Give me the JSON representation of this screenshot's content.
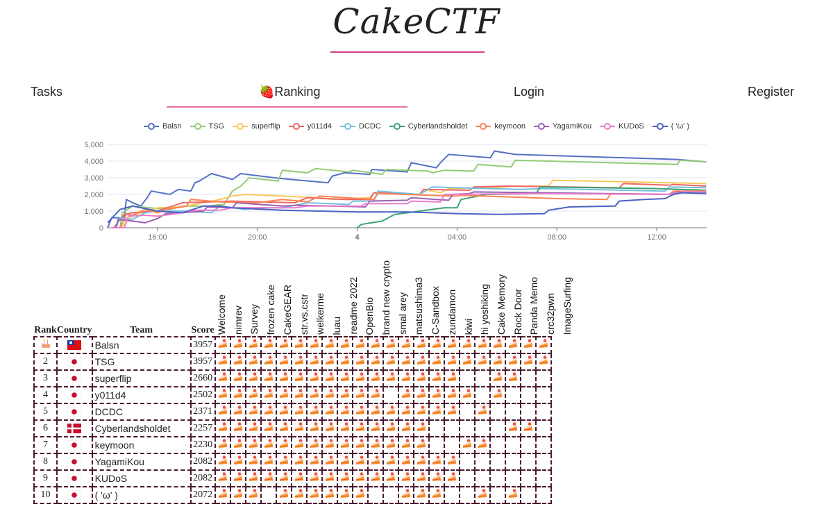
{
  "header": {
    "logo": "CakeCTF"
  },
  "nav": {
    "items": [
      {
        "label": "Tasks",
        "active": false
      },
      {
        "label": "🍓Ranking",
        "active": true
      },
      {
        "label": "Login",
        "active": false
      },
      {
        "label": "Register",
        "active": false
      }
    ],
    "accent": "#e66fa5"
  },
  "chart_data": {
    "type": "line",
    "xlabel": "",
    "ylabel": "",
    "x_tick_labels": [
      "16:00",
      "20:00",
      "4",
      "04:00",
      "08:00",
      "12:00"
    ],
    "x_range": [
      "3 14:00",
      "4 14:00"
    ],
    "y_ticks": [
      "0",
      "1,000",
      "2,000",
      "3,000",
      "4,000",
      "5,000"
    ],
    "ylim": [
      0,
      5000
    ],
    "grid": true,
    "legend": "top",
    "series": [
      {
        "name": "Balsn",
        "color": "#5470c6",
        "points": [
          [
            "14:00",
            0
          ],
          [
            "14:10",
            600
          ],
          [
            "14:40",
            600
          ],
          [
            "14:45",
            1700
          ],
          [
            "15:00",
            1500
          ],
          [
            "15:20",
            1300
          ],
          [
            "15:35",
            1800
          ],
          [
            "15:45",
            2200
          ],
          [
            "16:30",
            2000
          ],
          [
            "16:50",
            2300
          ],
          [
            "17:20",
            2200
          ],
          [
            "17:30",
            2700
          ],
          [
            "17:40",
            2800
          ],
          [
            "18:10",
            3250
          ],
          [
            "19:00",
            2900
          ],
          [
            "19:20",
            3250
          ],
          [
            "20:40",
            3000
          ],
          [
            "21:00",
            2950
          ],
          [
            "22:50",
            2700
          ],
          [
            "23:00",
            3100
          ],
          [
            "23:30",
            3300
          ],
          [
            "00:30",
            3200
          ],
          [
            "00:35",
            3500
          ],
          [
            "02:00",
            3350
          ],
          [
            "02:10",
            3900
          ],
          [
            "03:10",
            3600
          ],
          [
            "03:20",
            3900
          ],
          [
            "03:40",
            4400
          ],
          [
            "05:20",
            4200
          ],
          [
            "05:30",
            4600
          ],
          [
            "06:20",
            4400
          ],
          [
            "12:50",
            4100
          ],
          [
            "13:59",
            3950
          ]
        ]
      },
      {
        "name": "TSG",
        "color": "#91cc75",
        "points": [
          [
            "14:30",
            0
          ],
          [
            "14:35",
            900
          ],
          [
            "15:00",
            1300
          ],
          [
            "16:00",
            1150
          ],
          [
            "16:30",
            1100
          ],
          [
            "17:00",
            1300
          ],
          [
            "18:00",
            1300
          ],
          [
            "18:40",
            1400
          ],
          [
            "19:00",
            2200
          ],
          [
            "19:20",
            2500
          ],
          [
            "19:40",
            3000
          ],
          [
            "20:50",
            2800
          ],
          [
            "21:00",
            3450
          ],
          [
            "22:00",
            3300
          ],
          [
            "22:20",
            3550
          ],
          [
            "23:40",
            3350
          ],
          [
            "23:50",
            3450
          ],
          [
            "01:00",
            3200
          ],
          [
            "01:10",
            3500
          ],
          [
            "02:50",
            3400
          ],
          [
            "03:00",
            3300
          ],
          [
            "03:30",
            3450
          ],
          [
            "04:40",
            3400
          ],
          [
            "04:50",
            3800
          ],
          [
            "06:10",
            3650
          ],
          [
            "06:20",
            4050
          ],
          [
            "12:50",
            3800
          ],
          [
            "12:55",
            4050
          ],
          [
            "13:59",
            3950
          ]
        ]
      },
      {
        "name": "superflip",
        "color": "#fac858",
        "points": [
          [
            "14:30",
            0
          ],
          [
            "15:00",
            700
          ],
          [
            "15:20",
            900
          ],
          [
            "16:00",
            1200
          ],
          [
            "17:00",
            1250
          ],
          [
            "18:30",
            1700
          ],
          [
            "19:00",
            1900
          ],
          [
            "19:30",
            2000
          ],
          [
            "22:30",
            1800
          ],
          [
            "23:00",
            1700
          ],
          [
            "00:30",
            1800
          ],
          [
            "00:40",
            2100
          ],
          [
            "02:30",
            2000
          ],
          [
            "02:40",
            2300
          ],
          [
            "03:20",
            2100
          ],
          [
            "03:40",
            2350
          ],
          [
            "05:30",
            2400
          ],
          [
            "06:20",
            2500
          ],
          [
            "07:40",
            2500
          ],
          [
            "07:50",
            2850
          ],
          [
            "13:59",
            2650
          ]
        ]
      },
      {
        "name": "y011d4",
        "color": "#ee6666",
        "points": [
          [
            "14:15",
            0
          ],
          [
            "14:40",
            800
          ],
          [
            "15:00",
            900
          ],
          [
            "16:00",
            1000
          ],
          [
            "17:00",
            1500
          ],
          [
            "19:00",
            1600
          ],
          [
            "21:30",
            1500
          ],
          [
            "22:00",
            1800
          ],
          [
            "23:30",
            1700
          ],
          [
            "00:30",
            1700
          ],
          [
            "00:40",
            2100
          ],
          [
            "02:30",
            2000
          ],
          [
            "02:40",
            2300
          ],
          [
            "04:30",
            2250
          ],
          [
            "04:40",
            2450
          ],
          [
            "06:00",
            2500
          ],
          [
            "10:30",
            2400
          ],
          [
            "10:40",
            2650
          ],
          [
            "12:30",
            2550
          ],
          [
            "12:40",
            2600
          ],
          [
            "13:59",
            2500
          ]
        ]
      },
      {
        "name": "DCDC",
        "color": "#73c0de",
        "points": [
          [
            "14:20",
            0
          ],
          [
            "14:30",
            600
          ],
          [
            "15:00",
            500
          ],
          [
            "15:30",
            900
          ],
          [
            "16:00",
            1000
          ],
          [
            "17:00",
            1000
          ],
          [
            "18:10",
            900
          ],
          [
            "18:30",
            1300
          ],
          [
            "19:00",
            1200
          ],
          [
            "19:30",
            1100
          ],
          [
            "20:00",
            1200
          ],
          [
            "21:00",
            1200
          ],
          [
            "22:00",
            1500
          ],
          [
            "23:40",
            1400
          ],
          [
            "23:50",
            1600
          ],
          [
            "00:40",
            1600
          ],
          [
            "00:50",
            2200
          ],
          [
            "02:30",
            2000
          ],
          [
            "03:00",
            2450
          ],
          [
            "04:00",
            2400
          ],
          [
            "06:30",
            2300
          ],
          [
            "07:30",
            2350
          ],
          [
            "12:20",
            2200
          ],
          [
            "12:30",
            2450
          ],
          [
            "13:59",
            2400
          ]
        ]
      },
      {
        "name": "Cyberlandsholdet",
        "color": "#3ba272",
        "points": [
          [
            "00:00",
            0
          ],
          [
            "00:10",
            200
          ],
          [
            "01:00",
            400
          ],
          [
            "01:30",
            800
          ],
          [
            "02:30",
            1000
          ],
          [
            "03:30",
            1200
          ],
          [
            "04:00",
            1200
          ],
          [
            "04:10",
            1700
          ],
          [
            "04:30",
            1800
          ],
          [
            "05:10",
            2000
          ],
          [
            "07:10",
            2050
          ],
          [
            "07:20",
            2450
          ],
          [
            "12:00",
            2350
          ],
          [
            "13:59",
            2250
          ]
        ]
      },
      {
        "name": "keymoon",
        "color": "#fc8452",
        "points": [
          [
            "14:30",
            0
          ],
          [
            "14:45",
            800
          ],
          [
            "15:00",
            750
          ],
          [
            "15:30",
            1100
          ],
          [
            "16:00",
            900
          ],
          [
            "16:20",
            1100
          ],
          [
            "17:10",
            1300
          ],
          [
            "17:20",
            1700
          ],
          [
            "18:30",
            1550
          ],
          [
            "20:00",
            1500
          ],
          [
            "21:00",
            1700
          ],
          [
            "22:00",
            1550
          ],
          [
            "22:30",
            1900
          ],
          [
            "00:40",
            1700
          ],
          [
            "00:50",
            2050
          ],
          [
            "04:00",
            1900
          ],
          [
            "04:10",
            1950
          ],
          [
            "08:00",
            1750
          ],
          [
            "10:00",
            1700
          ],
          [
            "10:10",
            2050
          ],
          [
            "12:30",
            2000
          ],
          [
            "12:40",
            2200
          ],
          [
            "13:59",
            2200
          ]
        ]
      },
      {
        "name": "YagamiKou",
        "color": "#9a60b4",
        "points": [
          [
            "14:20",
            0
          ],
          [
            "14:25",
            500
          ],
          [
            "15:00",
            400
          ],
          [
            "15:30",
            300
          ],
          [
            "16:00",
            550
          ],
          [
            "16:20",
            850
          ],
          [
            "17:00",
            900
          ],
          [
            "17:50",
            1000
          ],
          [
            "18:00",
            1250
          ],
          [
            "19:00",
            1200
          ],
          [
            "19:10",
            1500
          ],
          [
            "21:00",
            1300
          ],
          [
            "21:40",
            1350
          ],
          [
            "00:20",
            1250
          ],
          [
            "00:30",
            1600
          ],
          [
            "02:00",
            1650
          ],
          [
            "02:10",
            1800
          ],
          [
            "03:40",
            1650
          ],
          [
            "03:50",
            2000
          ],
          [
            "04:30",
            2050
          ],
          [
            "04:40",
            2150
          ],
          [
            "12:30",
            2000
          ],
          [
            "12:50",
            2150
          ],
          [
            "13:59",
            2100
          ]
        ]
      },
      {
        "name": "KUDoS",
        "color": "#ea7ccc",
        "points": [
          [
            "14:10",
            0
          ],
          [
            "14:40",
            0
          ],
          [
            "14:50",
            700
          ],
          [
            "15:30",
            750
          ],
          [
            "16:00",
            700
          ],
          [
            "17:00",
            900
          ],
          [
            "17:30",
            1050
          ],
          [
            "18:30",
            1050
          ],
          [
            "19:00",
            1200
          ],
          [
            "21:30",
            1200
          ],
          [
            "22:00",
            1300
          ],
          [
            "00:10",
            1300
          ],
          [
            "00:20",
            1450
          ],
          [
            "02:00",
            1450
          ],
          [
            "02:10",
            1600
          ],
          [
            "03:20",
            1550
          ],
          [
            "03:30",
            2000
          ],
          [
            "07:00",
            2050
          ],
          [
            "12:30",
            2000
          ],
          [
            "13:00",
            2150
          ],
          [
            "13:59",
            2150
          ]
        ]
      },
      {
        "name": "( 'ω' )",
        "color": "#4a62c4",
        "points": [
          [
            "14:00",
            300
          ],
          [
            "14:30",
            1100
          ],
          [
            "15:00",
            1300
          ],
          [
            "16:00",
            1000
          ],
          [
            "17:00",
            900
          ],
          [
            "17:50",
            1300
          ],
          [
            "18:30",
            1300
          ],
          [
            "19:00",
            1200
          ],
          [
            "21:00",
            1050
          ],
          [
            "00:00",
            950
          ],
          [
            "02:00",
            950
          ],
          [
            "04:00",
            850
          ],
          [
            "05:40",
            800
          ],
          [
            "07:30",
            850
          ],
          [
            "07:40",
            1050
          ],
          [
            "08:30",
            1250
          ],
          [
            "10:20",
            1300
          ],
          [
            "10:30",
            1600
          ],
          [
            "11:30",
            1700
          ],
          [
            "12:20",
            1750
          ],
          [
            "12:40",
            2000
          ],
          [
            "13:00",
            2100
          ],
          [
            "13:59",
            2050
          ]
        ]
      }
    ]
  },
  "table": {
    "headers": {
      "rank": "Rank",
      "country": "Country",
      "team": "Team",
      "score": "Score"
    },
    "challenges": [
      "Welcome",
      "nimrev",
      "Survey",
      "frozen cake",
      "CakeGEAR",
      "str.vs.cstr",
      "welkerme",
      "luau",
      "readme 2022",
      "OpenBio",
      "brand new crypto",
      "smal arey",
      "matsushima3",
      "C-Sandbox",
      "zundamon",
      "kiwi",
      "hi yoshiking",
      "Cake Memory",
      "Rock Door",
      "Panda Memo",
      "crc32pwn",
      "ImageSurfing"
    ],
    "first_place_icon": "birthday-cake-icon",
    "solve_icon": "shortcake-icon",
    "rows": [
      {
        "rank": "1",
        "flag": "taiwan",
        "team": "Balsn",
        "score": "3957",
        "solves": "1111111111111111111111"
      },
      {
        "rank": "2",
        "flag": "japan",
        "team": "TSG",
        "score": "3957",
        "solves": "1111111111111111111111"
      },
      {
        "rank": "3",
        "flag": "japan",
        "team": "superflip",
        "score": "2660",
        "solves": "1111111111111111001100"
      },
      {
        "rank": "4",
        "flag": "japan",
        "team": "y011d4",
        "score": "2502",
        "solves": "1111111111101111101000"
      },
      {
        "rank": "5",
        "flag": "japan",
        "team": "DCDC",
        "score": "2371",
        "solves": "1111111111111111010000"
      },
      {
        "rank": "6",
        "flag": "denmark",
        "team": "Cyberlandsholdet",
        "score": "2257",
        "solves": "1111111111111100000110"
      },
      {
        "rank": "7",
        "flag": "japan",
        "team": "keymoon",
        "score": "2230",
        "solves": "1111111111111100110000"
      },
      {
        "rank": "8",
        "flag": "japan",
        "team": "YagamiKou",
        "score": "2082",
        "solves": "1111111111111111000000"
      },
      {
        "rank": "9",
        "flag": "japan",
        "team": "KUDoS",
        "score": "2082",
        "solves": "1111111111111111000000"
      },
      {
        "rank": "10",
        "flag": "japan",
        "team": "( 'ω' )",
        "score": "2072",
        "solves": "1110111111001110010100"
      }
    ],
    "border_color": "#4a1a2e"
  }
}
